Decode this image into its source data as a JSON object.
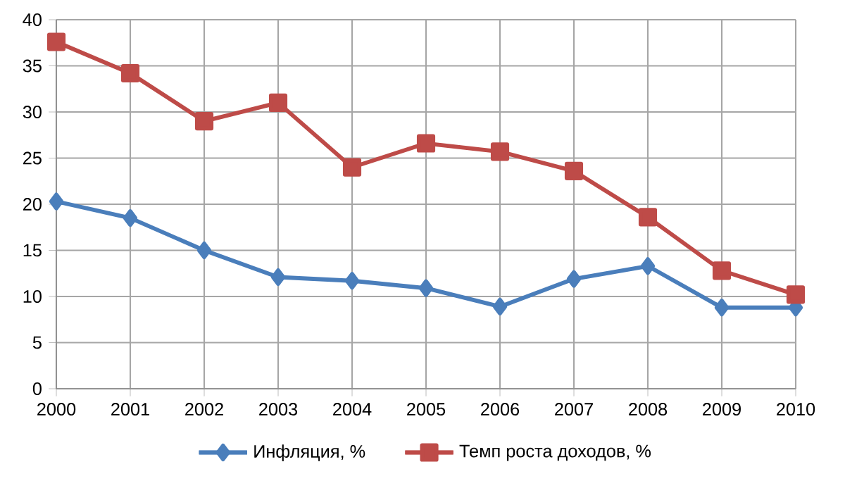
{
  "chart_data": {
    "type": "line",
    "categories": [
      "2000",
      "2001",
      "2002",
      "2003",
      "2004",
      "2005",
      "2006",
      "2007",
      "2008",
      "2009",
      "2010"
    ],
    "series": [
      {
        "name": "Инфляция, %",
        "color": "#4a7ebb",
        "marker": "diamond",
        "values": [
          20.3,
          18.5,
          15.0,
          12.1,
          11.7,
          10.9,
          8.9,
          11.9,
          13.3,
          8.8,
          8.8
        ]
      },
      {
        "name": "Темп роста доходов, %",
        "color": "#be4b48",
        "marker": "square",
        "values": [
          37.6,
          34.2,
          29.0,
          31.0,
          24.0,
          26.6,
          25.7,
          23.6,
          18.6,
          12.8,
          10.2
        ]
      }
    ],
    "ylim": [
      0,
      40
    ],
    "yticks": [
      0,
      5,
      10,
      15,
      20,
      25,
      30,
      35,
      40
    ],
    "grid": true,
    "legend": "bottom",
    "line_style": "solid"
  }
}
